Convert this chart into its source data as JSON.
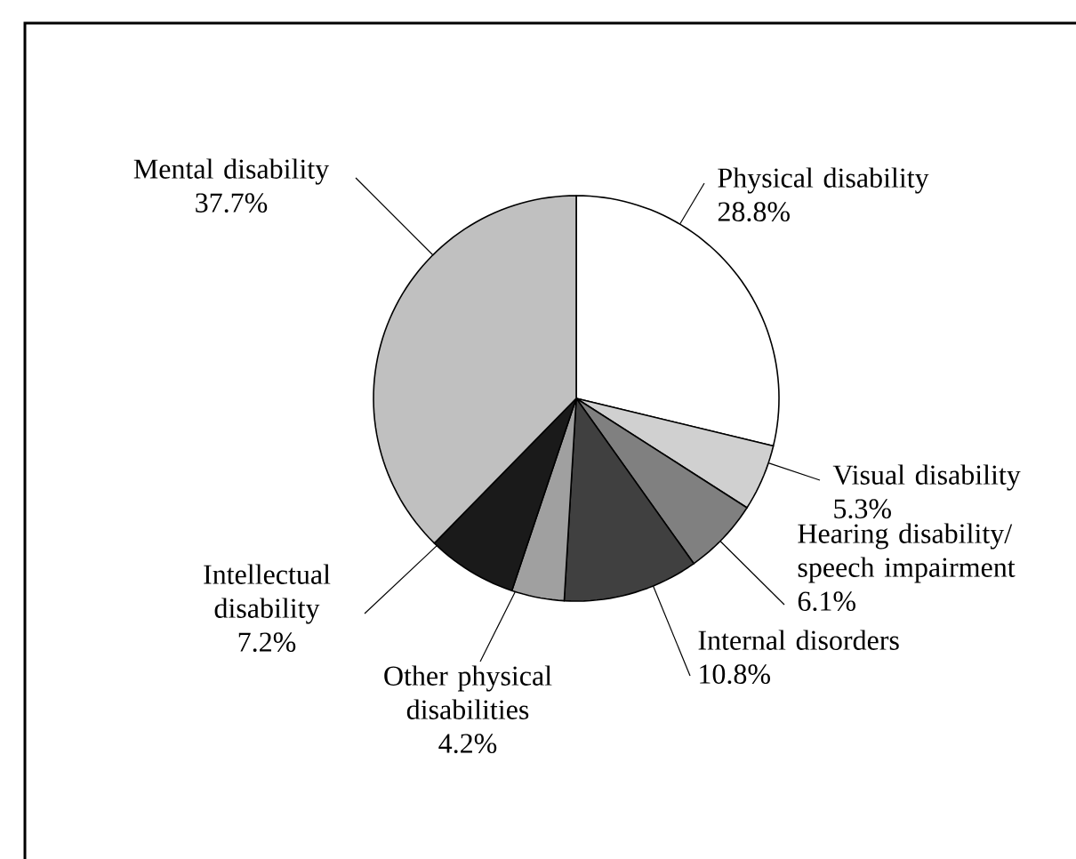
{
  "chart_data": {
    "type": "pie",
    "categories": [
      "Physical disability",
      "Visual disability",
      "Hearing disability/ speech impairment",
      "Internal disorders",
      "Other physical disabilities",
      "Intellectual disability",
      "Mental disability"
    ],
    "values": [
      28.8,
      5.3,
      6.1,
      10.8,
      4.2,
      7.2,
      37.7
    ],
    "value_labels": [
      "28.8%",
      "5.3%",
      "6.1%",
      "10.8%",
      "4.2%",
      "7.2%",
      "37.7%"
    ],
    "colors": [
      "#ffffff",
      "#d0d0d0",
      "#808080",
      "#404040",
      "#a0a0a0",
      "#1a1a1a",
      "#c0c0c0"
    ]
  }
}
